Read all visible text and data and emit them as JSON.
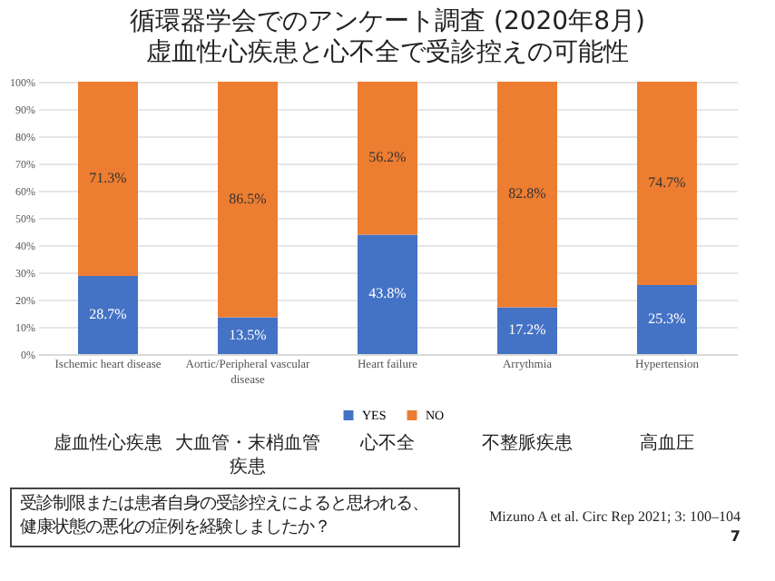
{
  "chart_data": {
    "type": "bar",
    "stacked": true,
    "title": [
      "循環器学会でのアンケート調査 (2020年8月)",
      "虚血性心疾患と心不全で受診控えの可能性"
    ],
    "categories": [
      "Ischemic heart disease",
      "Aortic/Peripheral vascular\ndisease",
      "Heart failure",
      "Arrythmia",
      "Hypertension"
    ],
    "series": [
      {
        "name": "YES",
        "color": "#4472c4",
        "values": [
          28.7,
          13.5,
          43.8,
          17.2,
          25.3
        ],
        "value_labels": [
          "28.7%",
          "13.5%",
          "43.8%",
          "17.2%",
          "25.3%"
        ]
      },
      {
        "name": "NO",
        "color": "#ed7d31",
        "values": [
          71.3,
          86.5,
          56.2,
          82.8,
          74.7
        ],
        "value_labels": [
          "71.3%",
          "86.5%",
          "56.2%",
          "82.8%",
          "74.7%"
        ]
      }
    ],
    "ylim": [
      0,
      100
    ],
    "yticks": [
      {
        "value": 0,
        "label": "0%"
      },
      {
        "value": 10,
        "label": "10%"
      },
      {
        "value": 20,
        "label": "20%"
      },
      {
        "value": 30,
        "label": "30%"
      },
      {
        "value": 40,
        "label": "40%"
      },
      {
        "value": 50,
        "label": "50%"
      },
      {
        "value": 60,
        "label": "60%"
      },
      {
        "value": 70,
        "label": "70%"
      },
      {
        "value": 80,
        "label": "80%"
      },
      {
        "value": 90,
        "label": "90%"
      },
      {
        "value": 100,
        "label": "100%"
      }
    ],
    "grid": "y",
    "legend": "bottom",
    "annotations": [
      "虚血性心疾患",
      "大血管・末梢血管疾患",
      "心不全",
      "不整脈疾患",
      "高血圧",
      "受診制限または患者自身の受診控えによると思われる、健康状態の悪化の症例を経験しましたか？",
      "Mizuno A et al. Circ Rep 2021; 3: 100–104",
      "7"
    ]
  }
}
